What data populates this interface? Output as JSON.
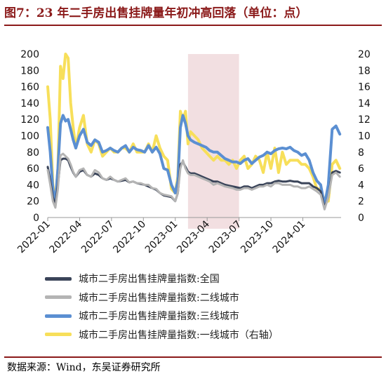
{
  "header": {
    "title": "图7：23 年二手房出售挂牌量年初冲高回落（单位：点）"
  },
  "footer": {
    "source": "数据来源：Wind，东吴证券研究所"
  },
  "colors": {
    "national": "#3a4459",
    "tier2": "#b4b4b4",
    "tier3": "#5b8fd2",
    "tier1": "#f7df5a",
    "highlight": "#f2dfe1",
    "title": "#8b1a1a"
  },
  "chart_data": {
    "type": "line",
    "title": "23 年二手房出售挂牌量年初冲高回落",
    "ylabel": "",
    "y2label": "",
    "ylim": [
      0,
      200
    ],
    "y2lim": [
      0,
      20
    ],
    "yticks": [
      0,
      20,
      40,
      60,
      80,
      100,
      120,
      140,
      160,
      180,
      200
    ],
    "y2ticks": [
      0,
      2,
      4,
      6,
      8,
      10,
      12,
      14,
      16,
      18,
      20
    ],
    "xlim": [
      2022.0,
      2024.3
    ],
    "xticks": [
      {
        "x": 2022.0,
        "label": "2022-01"
      },
      {
        "x": 2022.25,
        "label": "2022-04"
      },
      {
        "x": 2022.5,
        "label": "2022-07"
      },
      {
        "x": 2022.75,
        "label": "2022-10"
      },
      {
        "x": 2023.0,
        "label": "2023-01"
      },
      {
        "x": 2023.25,
        "label": "2023-04"
      },
      {
        "x": 2023.5,
        "label": "2023-07"
      },
      {
        "x": 2023.75,
        "label": "2023-10"
      },
      {
        "x": 2024.0,
        "label": "2024-01"
      }
    ],
    "highlight_range": [
      2023.1,
      2023.5
    ],
    "legend_position": "bottom",
    "grid": false,
    "series": [
      {
        "name": "城市二手房出售挂牌量指数:一线城市（右轴）",
        "axis": "right",
        "color": "#f7df5a",
        "width": 4,
        "x": [
          2022.0,
          2022.02,
          2022.04,
          2022.06,
          2022.08,
          2022.1,
          2022.12,
          2022.14,
          2022.16,
          2022.18,
          2022.2,
          2022.22,
          2022.25,
          2022.28,
          2022.31,
          2022.34,
          2022.37,
          2022.4,
          2022.43,
          2022.46,
          2022.49,
          2022.52,
          2022.55,
          2022.58,
          2022.61,
          2022.64,
          2022.67,
          2022.7,
          2022.73,
          2022.76,
          2022.79,
          2022.82,
          2022.85,
          2022.88,
          2022.91,
          2022.94,
          2022.97,
          2023.0,
          2023.02,
          2023.04,
          2023.06,
          2023.08,
          2023.1,
          2023.12,
          2023.15,
          2023.18,
          2023.21,
          2023.24,
          2023.27,
          2023.3,
          2023.33,
          2023.36,
          2023.39,
          2023.42,
          2023.45,
          2023.48,
          2023.51,
          2023.54,
          2023.57,
          2023.6,
          2023.63,
          2023.66,
          2023.69,
          2023.72,
          2023.75,
          2023.78,
          2023.81,
          2023.84,
          2023.87,
          2023.9,
          2023.93,
          2023.96,
          2023.99,
          2024.02,
          2024.05,
          2024.08,
          2024.11,
          2024.14,
          2024.17,
          2024.2,
          2024.23,
          2024.26,
          2024.29
        ],
        "y": [
          16.0,
          12.0,
          4.0,
          2.0,
          6.0,
          18.5,
          17.0,
          20.0,
          19.5,
          14.0,
          11.0,
          8.5,
          11.0,
          12.5,
          9.0,
          8.0,
          9.5,
          9.0,
          7.5,
          8.0,
          8.5,
          8.0,
          8.0,
          8.5,
          8.5,
          8.0,
          9.0,
          8.0,
          8.0,
          8.0,
          9.0,
          8.0,
          10.0,
          8.5,
          7.5,
          7.0,
          3.5,
          3.0,
          5.0,
          13.0,
          12.0,
          13.0,
          9.0,
          10.5,
          10.0,
          9.5,
          8.5,
          8.0,
          7.5,
          7.0,
          7.5,
          7.0,
          7.0,
          6.5,
          7.0,
          6.0,
          7.0,
          7.5,
          6.0,
          6.5,
          7.5,
          7.0,
          5.5,
          8.0,
          6.0,
          8.5,
          5.5,
          8.0,
          6.5,
          7.0,
          7.0,
          7.0,
          6.5,
          6.5,
          6.0,
          5.0,
          3.5,
          3.5,
          2.0,
          2.0,
          6.5,
          7.0,
          6.0
        ]
      },
      {
        "name": "城市二手房出售挂牌量指数:三线城市",
        "axis": "left",
        "color": "#5b8fd2",
        "width": 4,
        "x": [
          2022.0,
          2022.02,
          2022.04,
          2022.06,
          2022.08,
          2022.1,
          2022.12,
          2022.14,
          2022.16,
          2022.18,
          2022.2,
          2022.22,
          2022.25,
          2022.28,
          2022.31,
          2022.34,
          2022.37,
          2022.4,
          2022.43,
          2022.46,
          2022.49,
          2022.52,
          2022.55,
          2022.58,
          2022.61,
          2022.64,
          2022.67,
          2022.7,
          2022.73,
          2022.76,
          2022.79,
          2022.82,
          2022.85,
          2022.88,
          2022.91,
          2022.94,
          2022.97,
          2023.0,
          2023.02,
          2023.04,
          2023.06,
          2023.08,
          2023.1,
          2023.12,
          2023.15,
          2023.18,
          2023.21,
          2023.24,
          2023.27,
          2023.3,
          2023.33,
          2023.36,
          2023.39,
          2023.42,
          2023.45,
          2023.48,
          2023.51,
          2023.54,
          2023.57,
          2023.6,
          2023.63,
          2023.66,
          2023.69,
          2023.72,
          2023.75,
          2023.78,
          2023.81,
          2023.84,
          2023.87,
          2023.9,
          2023.93,
          2023.96,
          2023.99,
          2024.02,
          2024.05,
          2024.08,
          2024.11,
          2024.14,
          2024.17,
          2024.2,
          2024.23,
          2024.26,
          2024.29
        ],
        "y": [
          110,
          80,
          35,
          18,
          60,
          115,
          125,
          118,
          120,
          108,
          95,
          85,
          100,
          108,
          92,
          88,
          95,
          92,
          80,
          82,
          85,
          82,
          80,
          85,
          88,
          80,
          86,
          83,
          82,
          80,
          88,
          80,
          86,
          78,
          60,
          58,
          40,
          30,
          45,
          110,
          125,
          115,
          100,
          95,
          92,
          90,
          88,
          86,
          82,
          80,
          80,
          76,
          72,
          70,
          68,
          68,
          66,
          70,
          72,
          66,
          70,
          74,
          76,
          80,
          78,
          82,
          84,
          85,
          84,
          86,
          82,
          80,
          76,
          78,
          70,
          55,
          45,
          40,
          15,
          40,
          108,
          112,
          102
        ]
      },
      {
        "name": "城市二手房出售挂牌量指数:全国",
        "axis": "left",
        "color": "#3a4459",
        "width": 3,
        "x": [
          2022.0,
          2022.02,
          2022.04,
          2022.06,
          2022.08,
          2022.1,
          2022.12,
          2022.14,
          2022.16,
          2022.18,
          2022.2,
          2022.22,
          2022.25,
          2022.28,
          2022.31,
          2022.34,
          2022.37,
          2022.4,
          2022.43,
          2022.46,
          2022.49,
          2022.52,
          2022.55,
          2022.58,
          2022.61,
          2022.64,
          2022.67,
          2022.7,
          2022.73,
          2022.76,
          2022.79,
          2022.82,
          2022.85,
          2022.88,
          2022.91,
          2022.94,
          2022.97,
          2023.0,
          2023.02,
          2023.04,
          2023.06,
          2023.08,
          2023.1,
          2023.12,
          2023.15,
          2023.18,
          2023.21,
          2023.24,
          2023.27,
          2023.3,
          2023.33,
          2023.36,
          2023.39,
          2023.42,
          2023.45,
          2023.48,
          2023.51,
          2023.54,
          2023.57,
          2023.6,
          2023.63,
          2023.66,
          2023.69,
          2023.72,
          2023.75,
          2023.78,
          2023.81,
          2023.84,
          2023.87,
          2023.9,
          2023.93,
          2023.96,
          2023.99,
          2024.02,
          2024.05,
          2024.08,
          2024.11,
          2024.14,
          2024.17,
          2024.2,
          2024.23,
          2024.26,
          2024.29
        ],
        "y": [
          62,
          45,
          25,
          15,
          40,
          70,
          72,
          72,
          70,
          62,
          55,
          50,
          56,
          58,
          52,
          50,
          54,
          52,
          48,
          46,
          48,
          46,
          44,
          45,
          46,
          43,
          44,
          42,
          41,
          40,
          38,
          36,
          34,
          30,
          27,
          26,
          25,
          20,
          30,
          65,
          68,
          62,
          56,
          54,
          54,
          52,
          50,
          48,
          46,
          44,
          44,
          42,
          40,
          39,
          38,
          37,
          36,
          38,
          38,
          36,
          38,
          40,
          40,
          42,
          42,
          44,
          45,
          44,
          44,
          45,
          44,
          44,
          42,
          42,
          42,
          38,
          36,
          32,
          12,
          25,
          55,
          57,
          55
        ]
      },
      {
        "name": "城市二手房出售挂牌量指数:二线城市",
        "axis": "left",
        "color": "#b4b4b4",
        "width": 3,
        "x": [
          2022.0,
          2022.02,
          2022.04,
          2022.06,
          2022.08,
          2022.1,
          2022.12,
          2022.14,
          2022.16,
          2022.18,
          2022.2,
          2022.22,
          2022.25,
          2022.28,
          2022.31,
          2022.34,
          2022.37,
          2022.4,
          2022.43,
          2022.46,
          2022.49,
          2022.52,
          2022.55,
          2022.58,
          2022.61,
          2022.64,
          2022.67,
          2022.7,
          2022.73,
          2022.76,
          2022.79,
          2022.82,
          2022.85,
          2022.88,
          2022.91,
          2022.94,
          2022.97,
          2023.0,
          2023.02,
          2023.04,
          2023.06,
          2023.08,
          2023.1,
          2023.12,
          2023.15,
          2023.18,
          2023.21,
          2023.24,
          2023.27,
          2023.3,
          2023.33,
          2023.36,
          2023.39,
          2023.42,
          2023.45,
          2023.48,
          2023.51,
          2023.54,
          2023.57,
          2023.6,
          2023.63,
          2023.66,
          2023.69,
          2023.72,
          2023.75,
          2023.78,
          2023.81,
          2023.84,
          2023.87,
          2023.9,
          2023.93,
          2023.96,
          2023.99,
          2024.02,
          2024.05,
          2024.08,
          2024.11,
          2024.14,
          2024.17,
          2024.2,
          2024.23,
          2024.26,
          2024.29
        ],
        "y": [
          58,
          40,
          20,
          12,
          35,
          76,
          78,
          75,
          72,
          65,
          56,
          50,
          58,
          60,
          52,
          50,
          58,
          55,
          48,
          46,
          50,
          46,
          44,
          46,
          48,
          43,
          44,
          42,
          42,
          40,
          40,
          36,
          35,
          30,
          28,
          27,
          26,
          20,
          30,
          60,
          70,
          60,
          54,
          52,
          52,
          50,
          48,
          46,
          44,
          40,
          42,
          40,
          38,
          37,
          36,
          34,
          34,
          36,
          36,
          34,
          36,
          38,
          38,
          40,
          38,
          42,
          42,
          40,
          40,
          40,
          38,
          38,
          36,
          36,
          38,
          35,
          32,
          28,
          10,
          25,
          52,
          55,
          50
        ]
      }
    ]
  },
  "legend": {
    "items": [
      {
        "label": "城市二手房出售挂牌量指数:全国",
        "color": "#3a4459"
      },
      {
        "label": "城市二手房出售挂牌量指数:二线城市",
        "color": "#b4b4b4"
      },
      {
        "label": "城市二手房出售挂牌量指数:三线城市",
        "color": "#5b8fd2"
      },
      {
        "label": "城市二手房出售挂牌量指数:一线城市（右轴）",
        "color": "#f7df5a"
      }
    ]
  }
}
